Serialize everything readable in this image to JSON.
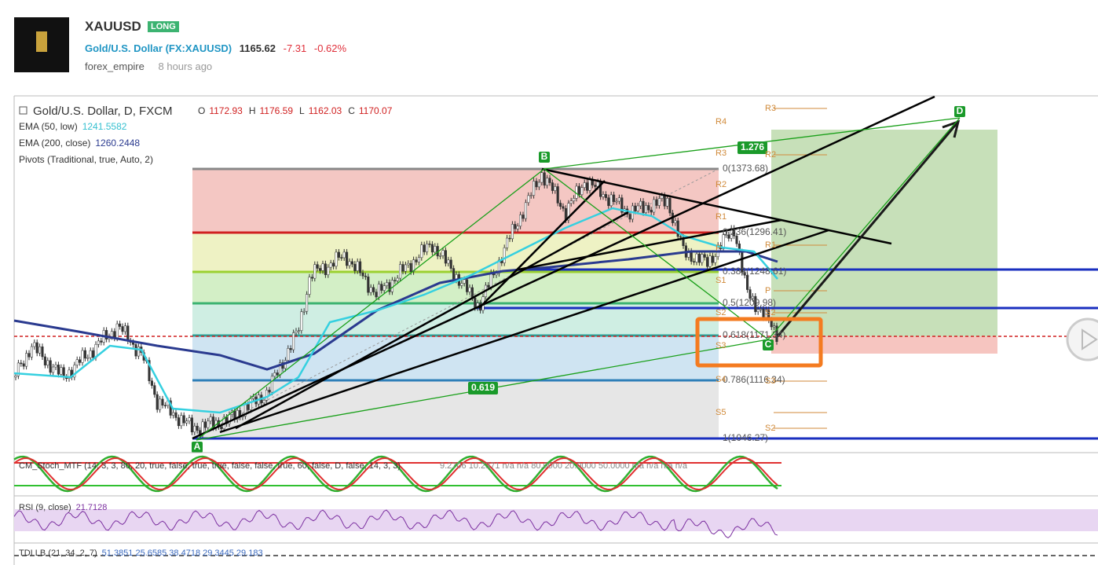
{
  "header": {
    "symbol": "XAUUSD",
    "badge": "LONG",
    "name": "Gold/U.S. Dollar",
    "ticker": "(FX:XAUUSD)",
    "price": "1165.62",
    "change": "-7.31",
    "change_pct": "-0.62%",
    "author": "forex_empire",
    "time": "8 hours ago"
  },
  "chart": {
    "title": "Gold/U.S. Dollar, D, FXCM",
    "ohlc": [
      {
        "label": "O",
        "value": "1172.93"
      },
      {
        "label": "H",
        "value": "1176.59"
      },
      {
        "label": "L",
        "value": "1162.03"
      },
      {
        "label": "C",
        "value": "1170.07"
      }
    ],
    "indicators": [
      {
        "name": "EMA (50, low)",
        "value": "1241.5582"
      },
      {
        "name": "EMA (200, close)",
        "value": "1260.2448"
      },
      {
        "name": "Pivots (Traditional, true, Auto, 2)"
      }
    ],
    "fib_levels": [
      "0(1373.68)",
      "0.236(1296.41)",
      "0.382(1248.61)",
      "0.5(1209.98)",
      "0.618(1171.34)",
      "0.786(1116.34)",
      "1(1046.27)"
    ],
    "pivots_left": [
      "R4",
      "R3",
      "R2",
      "R1",
      "P",
      "S1",
      "S2",
      "S3",
      "S4"
    ],
    "pivots_right": [
      "R3",
      "R2",
      "R1",
      "P",
      "S2",
      "S3",
      "S5",
      "S2"
    ],
    "points": [
      "A",
      "B",
      "C",
      "D"
    ],
    "ratios": [
      "1.276",
      "0.619"
    ]
  },
  "panes": {
    "stoch": {
      "label": "CM_Stoch_MTF (14, 3, 3, 80, 20, true, false, true, true, false, false, true, 60, false, D, false, 14, 3, 3)",
      "values": "9.2706 10.2371 n/a n/a 80.0000 20.0000 50.0000 n/a n/a n/a n/a"
    },
    "rsi": {
      "label": "RSI (9, close)",
      "value": "21.7128"
    },
    "tdi": {
      "label": "TDI LB (21, 34, 2, 7)",
      "values": "51.3851 25.6585 38.4718 29.3445 29.183"
    }
  }
}
